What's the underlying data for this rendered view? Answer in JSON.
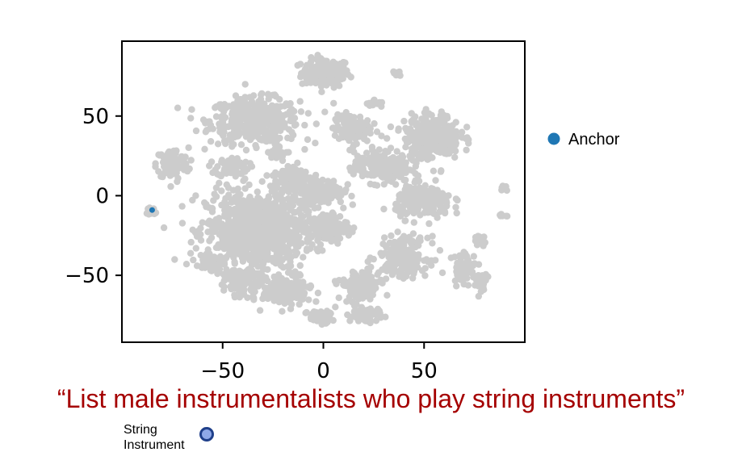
{
  "chart_data": {
    "type": "scatter",
    "title": "",
    "xlabel": "",
    "ylabel": "",
    "xlim": [
      -100,
      100
    ],
    "ylim": [
      -92,
      97
    ],
    "xticks": [
      -50,
      0,
      50
    ],
    "yticks": [
      50,
      0,
      -50
    ],
    "xtick_labels": [
      "−50",
      "0",
      "50"
    ],
    "ytick_labels": [
      "50",
      "0",
      "−50"
    ],
    "grid": false,
    "legend": {
      "placement": "right",
      "entries": [
        {
          "name": "Anchor",
          "color": "#1f77b4"
        }
      ]
    },
    "series": [
      {
        "name": "Anchor",
        "color": "#1f77b4",
        "points": [
          [
            -85,
            -9
          ]
        ]
      }
    ],
    "background_cluster_color": "#cccccc",
    "background_clusters": [
      {
        "cx": 1,
        "cy": 77,
        "rx": 12,
        "ry": 9,
        "n": 140
      },
      {
        "cx": -34,
        "cy": 47,
        "rx": 22,
        "ry": 14,
        "n": 420
      },
      {
        "cx": -75,
        "cy": 20,
        "rx": 8,
        "ry": 10,
        "n": 110
      },
      {
        "cx": -45,
        "cy": 18,
        "rx": 8,
        "ry": 6,
        "n": 70
      },
      {
        "cx": -34,
        "cy": -22,
        "rx": 24,
        "ry": 24,
        "n": 900
      },
      {
        "cx": -15,
        "cy": 10,
        "rx": 10,
        "ry": 10,
        "n": 120
      },
      {
        "cx": -1,
        "cy": 3,
        "rx": 11,
        "ry": 8,
        "n": 180
      },
      {
        "cx": 2,
        "cy": -20,
        "rx": 10,
        "ry": 9,
        "n": 140
      },
      {
        "cx": 14,
        "cy": 42,
        "rx": 9,
        "ry": 9,
        "n": 120
      },
      {
        "cx": 29,
        "cy": 18,
        "rx": 14,
        "ry": 10,
        "n": 210
      },
      {
        "cx": 54,
        "cy": 37,
        "rx": 14,
        "ry": 14,
        "n": 300
      },
      {
        "cx": 50,
        "cy": -4,
        "rx": 14,
        "ry": 10,
        "n": 220
      },
      {
        "cx": 40,
        "cy": -38,
        "rx": 12,
        "ry": 12,
        "n": 200
      },
      {
        "cx": 18,
        "cy": -58,
        "rx": 10,
        "ry": 12,
        "n": 120
      },
      {
        "cx": -18,
        "cy": -60,
        "rx": 12,
        "ry": 9,
        "n": 180
      },
      {
        "cx": -2,
        "cy": -76,
        "rx": 6,
        "ry": 4,
        "n": 60
      },
      {
        "cx": 21,
        "cy": -75,
        "rx": 8,
        "ry": 4,
        "n": 60
      },
      {
        "cx": -40,
        "cy": -55,
        "rx": 9,
        "ry": 8,
        "n": 90
      },
      {
        "cx": -55,
        "cy": -42,
        "rx": 6,
        "ry": 6,
        "n": 50
      },
      {
        "cx": 70,
        "cy": -45,
        "rx": 6,
        "ry": 10,
        "n": 60
      },
      {
        "cx": 78,
        "cy": -55,
        "rx": 3,
        "ry": 6,
        "n": 20
      },
      {
        "cx": 78,
        "cy": -28,
        "rx": 4,
        "ry": 3,
        "n": 15
      },
      {
        "cx": -22,
        "cy": 27,
        "rx": 5,
        "ry": 4,
        "n": 30
      },
      {
        "cx": 36,
        "cy": 77,
        "rx": 2,
        "ry": 2,
        "n": 8
      },
      {
        "cx": 90,
        "cy": 5,
        "rx": 2,
        "ry": 2,
        "n": 6
      },
      {
        "cx": 89,
        "cy": -12,
        "rx": 2,
        "ry": 2,
        "n": 6
      },
      {
        "cx": -85,
        "cy": -10,
        "rx": 3,
        "ry": 2,
        "n": 16
      },
      {
        "cx": 25,
        "cy": 58,
        "rx": 4,
        "ry": 3,
        "n": 18
      }
    ]
  },
  "caption": "“List male instrumentalists who play string instruments”",
  "marker": {
    "label_line1": "String",
    "label_line2": "Instrument",
    "fill": "#8ea8e8",
    "stroke": "#1f3f8a"
  }
}
